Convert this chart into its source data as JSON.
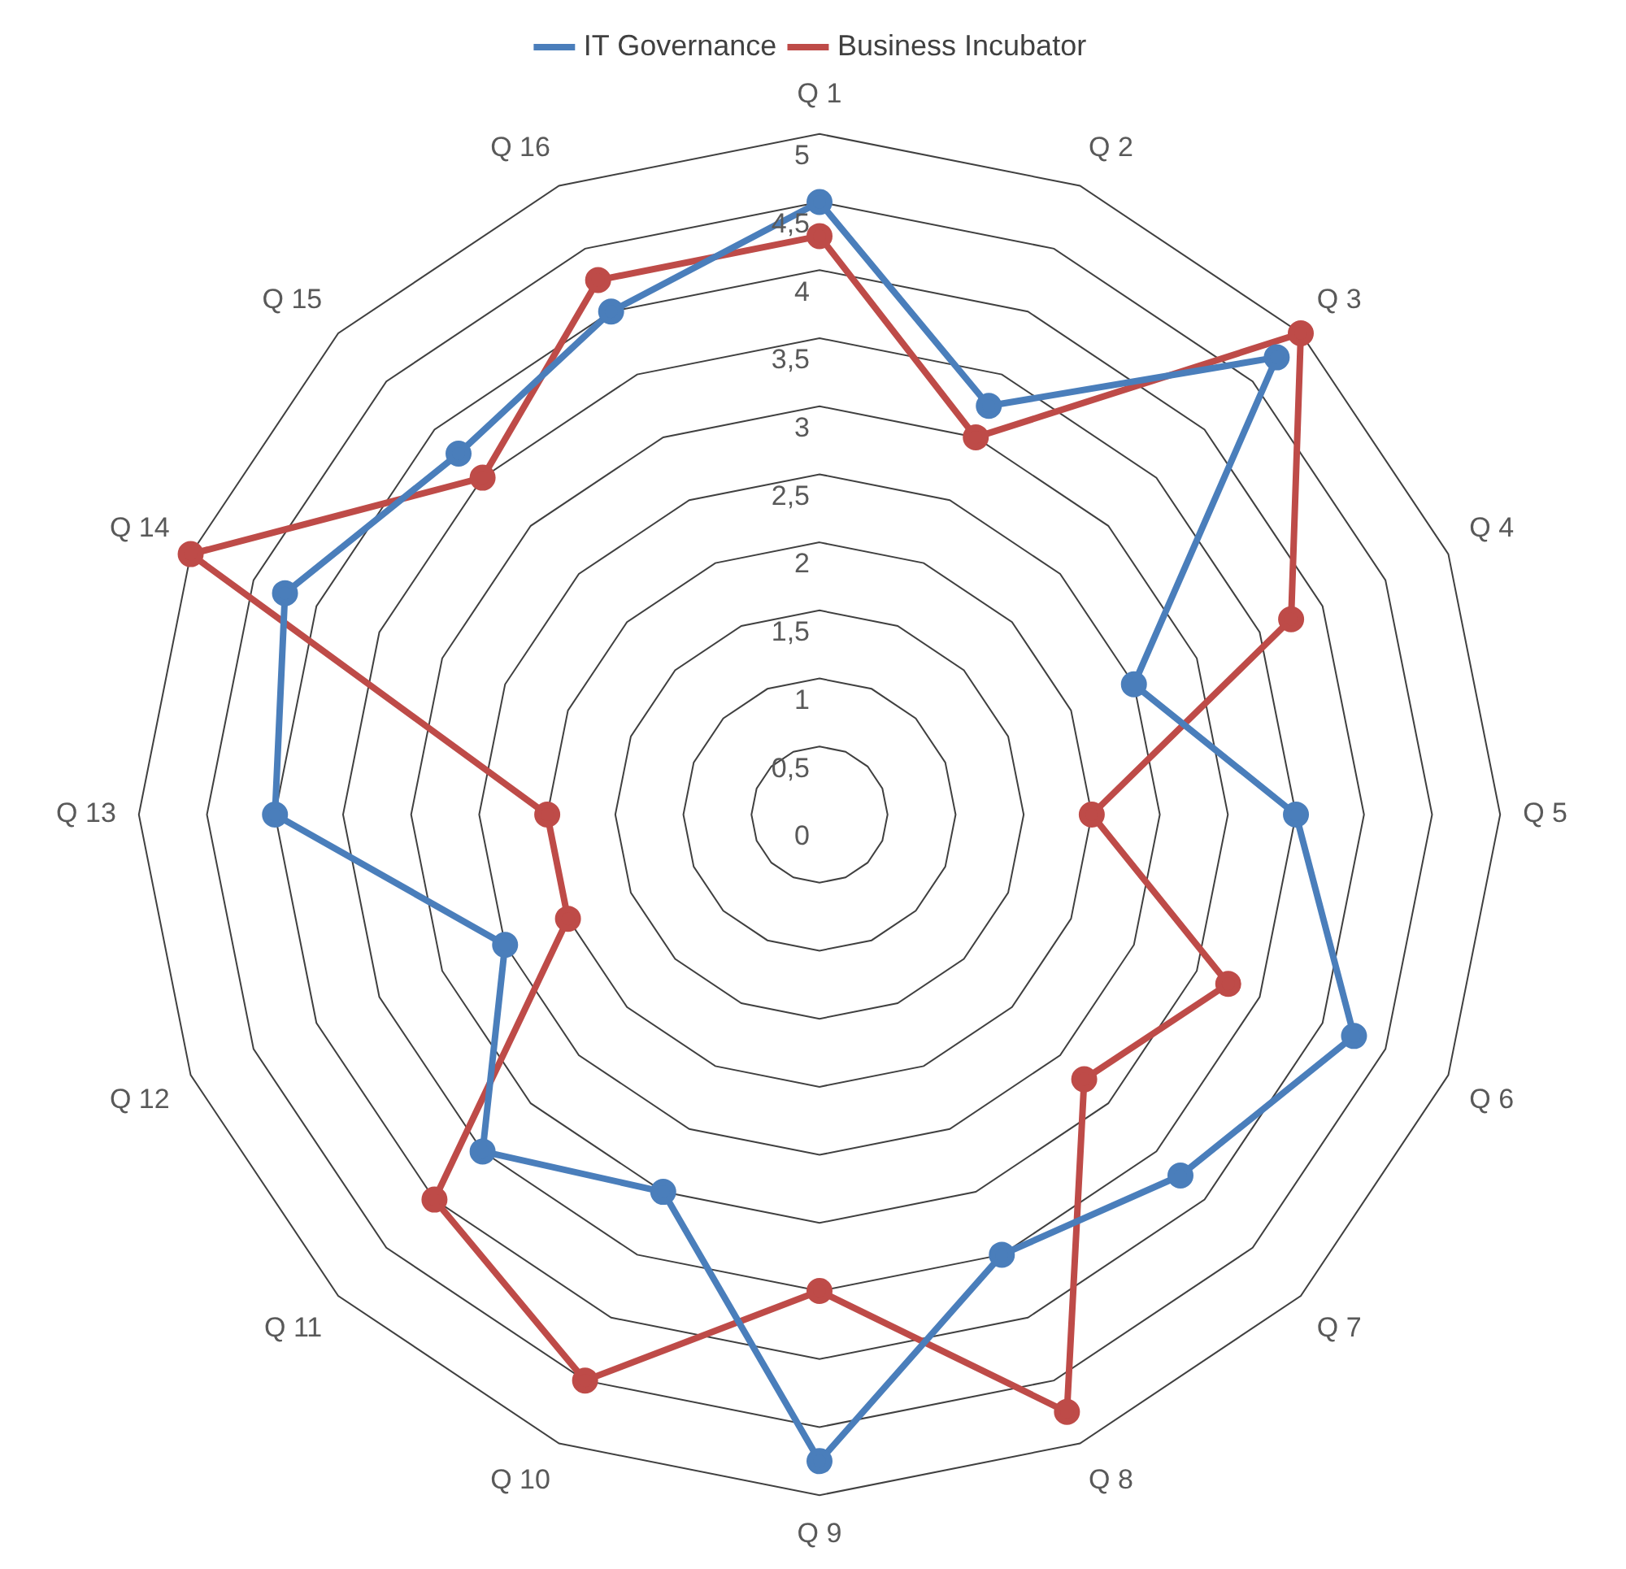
{
  "chart_data": {
    "type": "radar",
    "categories": [
      "Q 1",
      "Q 2",
      "Q 3",
      "Q 4",
      "Q 5",
      "Q 6",
      "Q 7",
      "Q 8",
      "Q 9",
      "Q 10",
      "Q 11",
      "Q 12",
      "Q 13",
      "Q 14",
      "Q 15",
      "Q 16"
    ],
    "series": [
      {
        "name": "IT Governance",
        "color": "#4a7ebb",
        "values": [
          4.5,
          3.25,
          4.75,
          2.5,
          3.5,
          4.25,
          3.75,
          3.5,
          4.75,
          3,
          3.5,
          2.5,
          4,
          4.25,
          3.75,
          4
        ]
      },
      {
        "name": "Business Incubator",
        "color": "#be4b48",
        "values": [
          4.25,
          3,
          5,
          3.75,
          2,
          3.25,
          2.75,
          4.75,
          3.5,
          4.5,
          4,
          2,
          2,
          5,
          3.5,
          4.25
        ]
      }
    ],
    "ylim": [
      0,
      5
    ],
    "yticks": [
      0,
      {
        "value": 0.5,
        "label": "0,5"
      },
      1,
      {
        "value": 1.5,
        "label": "1,5"
      },
      2,
      {
        "value": 2.5,
        "label": "2,5"
      },
      3,
      {
        "value": 3.5,
        "label": "3,5"
      },
      4,
      {
        "value": 4.5,
        "label": "4,5"
      },
      5
    ],
    "grid": true,
    "legend": "top",
    "marker": "circle",
    "line_style": "solid"
  }
}
